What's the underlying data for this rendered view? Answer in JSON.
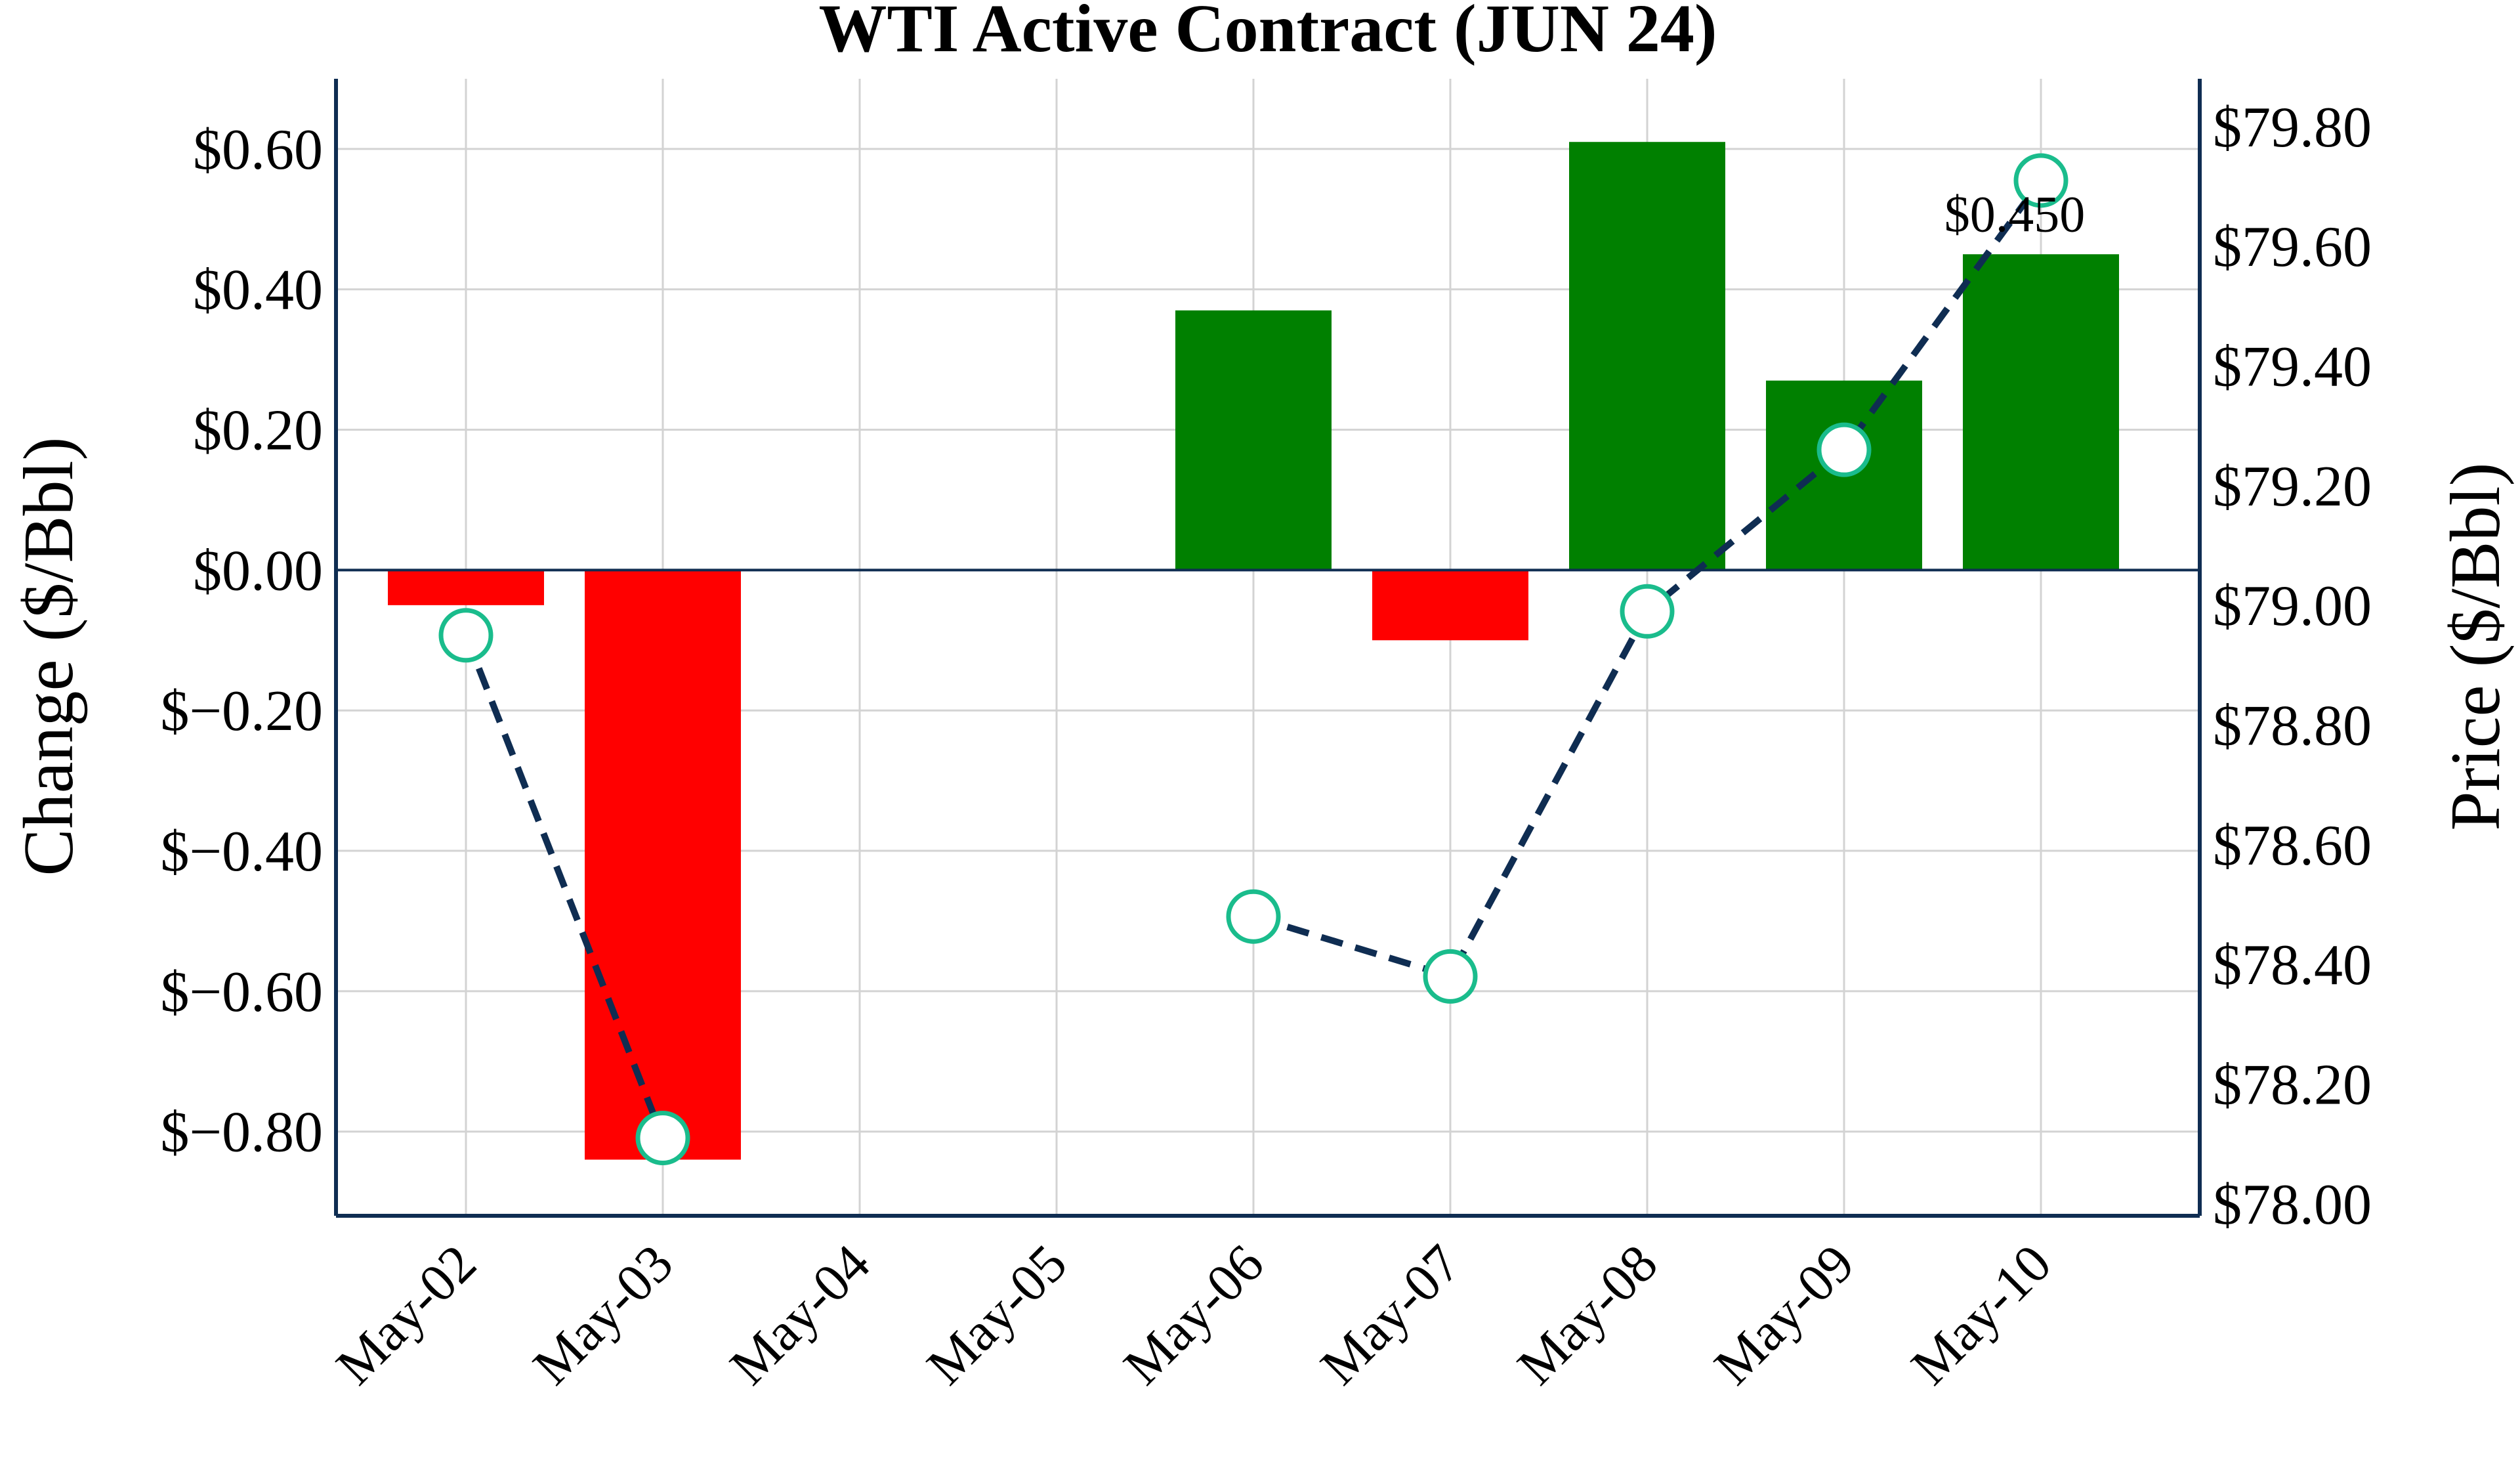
{
  "chart_data": {
    "type": "bar",
    "title": "WTI Active Contract (JUN 24)",
    "categories": [
      "May-02",
      "May-03",
      "May-04",
      "May-05",
      "May-06",
      "May-07",
      "May-08",
      "May-09",
      "May-10"
    ],
    "series": [
      {
        "type": "bar",
        "axis": "left",
        "values": [
          -0.05,
          -0.84,
          0,
          0,
          0.37,
          -0.1,
          0.61,
          0.27,
          0.45
        ]
      },
      {
        "type": "line",
        "axis": "right",
        "values": [
          78.95,
          78.11,
          null,
          null,
          78.48,
          78.38,
          78.99,
          79.26,
          79.71
        ]
      }
    ],
    "ylabel_left": "Change ($/Bbl)",
    "ylabel_right": "Price ($/Bbl)",
    "ylim_left": [
      -0.92,
      0.7
    ],
    "ylim_right": [
      77.98,
      79.88
    ],
    "yticks_left": [
      "$0.60",
      "$0.40",
      "$0.20",
      "$0.00",
      "$−0.20",
      "$−0.40",
      "$−0.60",
      "$−0.80"
    ],
    "yticks_left_values": [
      0.6,
      0.4,
      0.2,
      0,
      -0.2,
      -0.4,
      -0.6,
      -0.8
    ],
    "yticks_right": [
      "$79.80",
      "$79.60",
      "$79.40",
      "$79.20",
      "$79.00",
      "$78.80",
      "$78.60",
      "$78.40",
      "$78.20",
      "$78.00"
    ],
    "yticks_right_values": [
      79.8,
      79.6,
      79.4,
      79.2,
      79.0,
      78.8,
      78.6,
      78.4,
      78.2,
      78.0
    ],
    "annotation": "$0.450",
    "grid": true,
    "colors": {
      "positive": "#008000",
      "negative": "#ff0000",
      "line": "#0f2d52",
      "marker": "#1abc8c",
      "axis": "#0f2d52",
      "grid": "#d3d3d3"
    }
  }
}
